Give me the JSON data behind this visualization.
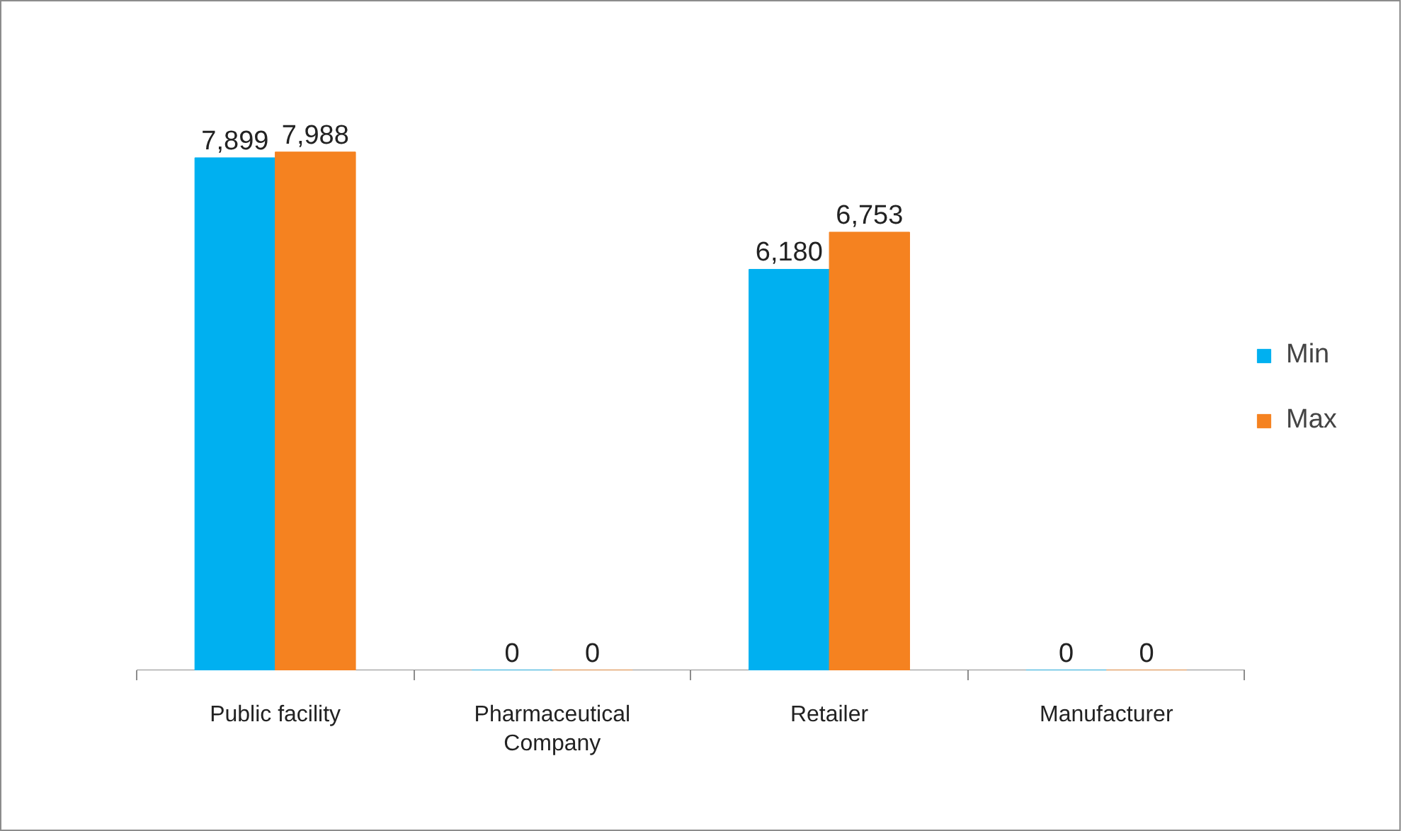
{
  "chart_data": {
    "type": "bar",
    "categories": [
      "Public facility",
      "Pharmaceutical Company",
      "Retailer",
      "Manufacturer"
    ],
    "series": [
      {
        "name": "Min",
        "color": "#00b0f0",
        "values": [
          7899,
          0,
          6180,
          0
        ],
        "value_labels": [
          "7,899",
          "0",
          "6,180",
          "0"
        ]
      },
      {
        "name": "Max",
        "color": "#f58220",
        "values": [
          7988,
          0,
          6753,
          0
        ],
        "value_labels": [
          "7,988",
          "0",
          "6,753",
          "0"
        ]
      }
    ],
    "grid": false,
    "legend": "right"
  }
}
